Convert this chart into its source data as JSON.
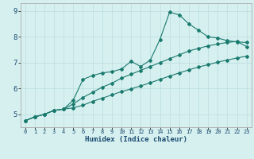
{
  "title": "",
  "xlabel": "Humidex (Indice chaleur)",
  "bg_color": "#d6f0f0",
  "grid_color": "#c0e0e0",
  "line_color": "#1a7a6e",
  "xlim": [
    -0.5,
    23.5
  ],
  "ylim": [
    4.5,
    9.3
  ],
  "xticks": [
    0,
    1,
    2,
    3,
    4,
    5,
    6,
    7,
    8,
    9,
    10,
    11,
    12,
    13,
    14,
    15,
    16,
    17,
    18,
    19,
    20,
    21,
    22,
    23
  ],
  "yticks": [
    5,
    6,
    7,
    8,
    9
  ],
  "line1_x": [
    0,
    1,
    2,
    3,
    4,
    5,
    6,
    7,
    8,
    9,
    10,
    11,
    12,
    13,
    14,
    15,
    16,
    17,
    18,
    19,
    20,
    21,
    22,
    23
  ],
  "line1_y": [
    4.75,
    4.9,
    5.0,
    5.15,
    5.2,
    5.55,
    6.35,
    6.5,
    6.6,
    6.65,
    6.75,
    7.05,
    6.85,
    7.1,
    7.9,
    8.95,
    8.85,
    8.5,
    8.25,
    8.0,
    7.95,
    7.85,
    7.8,
    7.78
  ],
  "line2_x": [
    0,
    1,
    2,
    3,
    4,
    5,
    6,
    7,
    8,
    9,
    10,
    11,
    12,
    13,
    14,
    15,
    16,
    17,
    18,
    19,
    20,
    21,
    22,
    23
  ],
  "line2_y": [
    4.75,
    4.9,
    5.0,
    5.15,
    5.2,
    5.4,
    5.65,
    5.85,
    6.05,
    6.2,
    6.4,
    6.55,
    6.7,
    6.85,
    7.0,
    7.15,
    7.3,
    7.45,
    7.55,
    7.65,
    7.72,
    7.78,
    7.82,
    7.62
  ],
  "line3_x": [
    0,
    1,
    2,
    3,
    4,
    5,
    6,
    7,
    8,
    9,
    10,
    11,
    12,
    13,
    14,
    15,
    16,
    17,
    18,
    19,
    20,
    21,
    22,
    23
  ],
  "line3_y": [
    4.75,
    4.9,
    5.0,
    5.15,
    5.2,
    5.25,
    5.35,
    5.5,
    5.62,
    5.75,
    5.88,
    5.98,
    6.1,
    6.22,
    6.35,
    6.48,
    6.6,
    6.72,
    6.83,
    6.92,
    7.02,
    7.1,
    7.18,
    7.25
  ]
}
